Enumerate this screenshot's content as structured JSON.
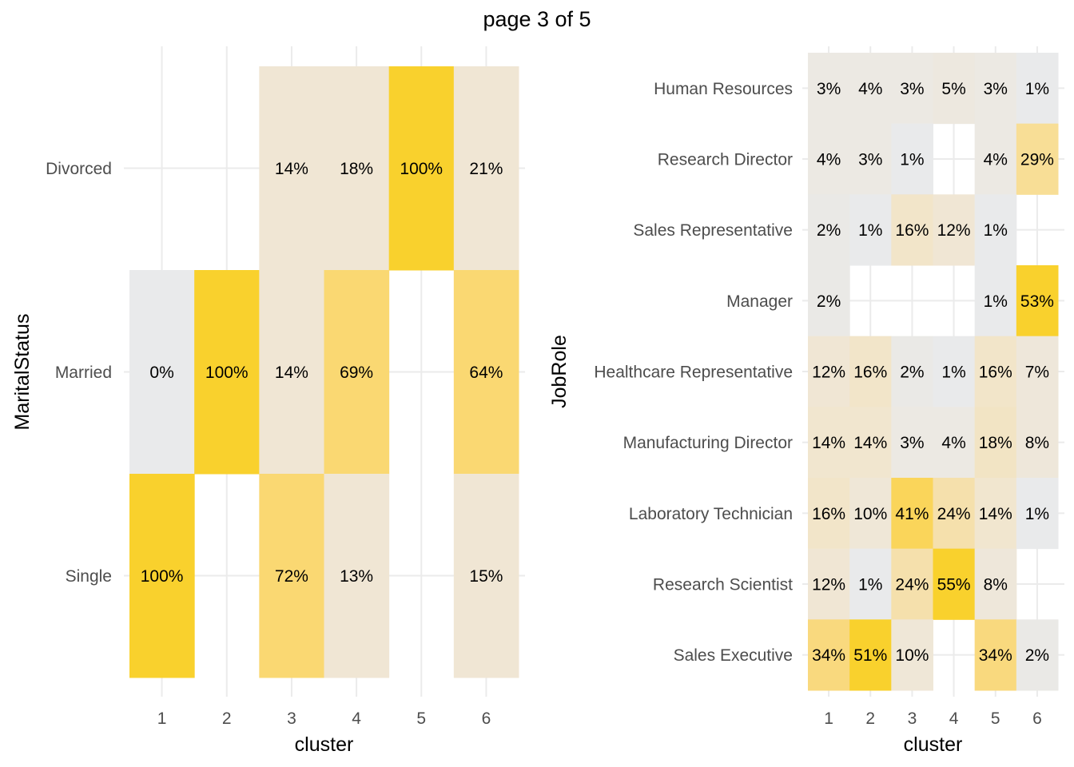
{
  "page_title": "page 3 of 5",
  "chart_data": [
    {
      "type": "heatmap",
      "xlabel": "cluster",
      "ylabel": "MaritalStatus",
      "x": [
        "1",
        "2",
        "3",
        "4",
        "5",
        "6"
      ],
      "y": [
        "Divorced",
        "Married",
        "Single"
      ],
      "grid": true,
      "legend": "none",
      "cells": [
        {
          "x": "3",
          "y": "Divorced",
          "label": "14%",
          "fill": "#f0e6d4"
        },
        {
          "x": "4",
          "y": "Divorced",
          "label": "18%",
          "fill": "#f0e6d4"
        },
        {
          "x": "5",
          "y": "Divorced",
          "label": "100%",
          "fill": "#f9d12d"
        },
        {
          "x": "6",
          "y": "Divorced",
          "label": "21%",
          "fill": "#f0e6d4"
        },
        {
          "x": "1",
          "y": "Married",
          "label": "0%",
          "fill": "#e9eaeb"
        },
        {
          "x": "2",
          "y": "Married",
          "label": "100%",
          "fill": "#f9d12d"
        },
        {
          "x": "3",
          "y": "Married",
          "label": "14%",
          "fill": "#f0e6d4"
        },
        {
          "x": "4",
          "y": "Married",
          "label": "69%",
          "fill": "#fad872"
        },
        {
          "x": "6",
          "y": "Married",
          "label": "64%",
          "fill": "#fad872"
        },
        {
          "x": "1",
          "y": "Single",
          "label": "100%",
          "fill": "#f9d12d"
        },
        {
          "x": "3",
          "y": "Single",
          "label": "72%",
          "fill": "#fad872"
        },
        {
          "x": "4",
          "y": "Single",
          "label": "13%",
          "fill": "#f0e6d4"
        },
        {
          "x": "6",
          "y": "Single",
          "label": "15%",
          "fill": "#f0e6d4"
        }
      ]
    },
    {
      "type": "heatmap",
      "xlabel": "cluster",
      "ylabel": "JobRole",
      "x": [
        "1",
        "2",
        "3",
        "4",
        "5",
        "6"
      ],
      "y": [
        "Human Resources",
        "Research Director",
        "Sales Representative",
        "Manager",
        "Healthcare Representative",
        "Manufacturing Director",
        "Laboratory Technician",
        "Research Scientist",
        "Sales Executive"
      ],
      "grid": true,
      "legend": "none",
      "cells": [
        {
          "x": "1",
          "y": "Human Resources",
          "label": "3%",
          "fill": "#ece9e3"
        },
        {
          "x": "2",
          "y": "Human Resources",
          "label": "4%",
          "fill": "#ece9e3"
        },
        {
          "x": "3",
          "y": "Human Resources",
          "label": "3%",
          "fill": "#ece9e3"
        },
        {
          "x": "4",
          "y": "Human Resources",
          "label": "5%",
          "fill": "#ede8df"
        },
        {
          "x": "5",
          "y": "Human Resources",
          "label": "3%",
          "fill": "#ece9e3"
        },
        {
          "x": "6",
          "y": "Human Resources",
          "label": "1%",
          "fill": "#e9eaeb"
        },
        {
          "x": "1",
          "y": "Research Director",
          "label": "4%",
          "fill": "#ece9e3"
        },
        {
          "x": "2",
          "y": "Research Director",
          "label": "3%",
          "fill": "#ece9e3"
        },
        {
          "x": "3",
          "y": "Research Director",
          "label": "1%",
          "fill": "#e9eaeb"
        },
        {
          "x": "5",
          "y": "Research Director",
          "label": "4%",
          "fill": "#ece9e3"
        },
        {
          "x": "6",
          "y": "Research Director",
          "label": "29%",
          "fill": "#f8de96"
        },
        {
          "x": "1",
          "y": "Sales Representative",
          "label": "2%",
          "fill": "#eae9e6"
        },
        {
          "x": "2",
          "y": "Sales Representative",
          "label": "1%",
          "fill": "#e9eaeb"
        },
        {
          "x": "3",
          "y": "Sales Representative",
          "label": "16%",
          "fill": "#f2e5c9"
        },
        {
          "x": "4",
          "y": "Sales Representative",
          "label": "12%",
          "fill": "#f0e6d4"
        },
        {
          "x": "5",
          "y": "Sales Representative",
          "label": "1%",
          "fill": "#e9eaeb"
        },
        {
          "x": "1",
          "y": "Manager",
          "label": "2%",
          "fill": "#eae9e6"
        },
        {
          "x": "5",
          "y": "Manager",
          "label": "1%",
          "fill": "#e9eaeb"
        },
        {
          "x": "6",
          "y": "Manager",
          "label": "53%",
          "fill": "#f9d12d"
        },
        {
          "x": "1",
          "y": "Healthcare Representative",
          "label": "12%",
          "fill": "#f0e6d4"
        },
        {
          "x": "2",
          "y": "Healthcare Representative",
          "label": "16%",
          "fill": "#f2e5c9"
        },
        {
          "x": "3",
          "y": "Healthcare Representative",
          "label": "2%",
          "fill": "#eae9e6"
        },
        {
          "x": "4",
          "y": "Healthcare Representative",
          "label": "1%",
          "fill": "#e9eaeb"
        },
        {
          "x": "5",
          "y": "Healthcare Representative",
          "label": "16%",
          "fill": "#f2e5c9"
        },
        {
          "x": "6",
          "y": "Healthcare Representative",
          "label": "7%",
          "fill": "#eee7da"
        },
        {
          "x": "1",
          "y": "Manufacturing Director",
          "label": "14%",
          "fill": "#f1e6cf"
        },
        {
          "x": "2",
          "y": "Manufacturing Director",
          "label": "14%",
          "fill": "#f1e6cf"
        },
        {
          "x": "3",
          "y": "Manufacturing Director",
          "label": "3%",
          "fill": "#ece9e3"
        },
        {
          "x": "4",
          "y": "Manufacturing Director",
          "label": "4%",
          "fill": "#ece9e3"
        },
        {
          "x": "5",
          "y": "Manufacturing Director",
          "label": "18%",
          "fill": "#f2e4c4"
        },
        {
          "x": "6",
          "y": "Manufacturing Director",
          "label": "8%",
          "fill": "#eee7da"
        },
        {
          "x": "1",
          "y": "Laboratory Technician",
          "label": "16%",
          "fill": "#f2e5c9"
        },
        {
          "x": "2",
          "y": "Laboratory Technician",
          "label": "10%",
          "fill": "#efe7d7"
        },
        {
          "x": "3",
          "y": "Laboratory Technician",
          "label": "41%",
          "fill": "#fad55a"
        },
        {
          "x": "4",
          "y": "Laboratory Technician",
          "label": "24%",
          "fill": "#f5e0ac"
        },
        {
          "x": "5",
          "y": "Laboratory Technician",
          "label": "14%",
          "fill": "#f1e6cf"
        },
        {
          "x": "6",
          "y": "Laboratory Technician",
          "label": "1%",
          "fill": "#e9eaeb"
        },
        {
          "x": "1",
          "y": "Research Scientist",
          "label": "12%",
          "fill": "#f0e6d4"
        },
        {
          "x": "2",
          "y": "Research Scientist",
          "label": "1%",
          "fill": "#e9eaeb"
        },
        {
          "x": "3",
          "y": "Research Scientist",
          "label": "24%",
          "fill": "#f5e0ac"
        },
        {
          "x": "4",
          "y": "Research Scientist",
          "label": "55%",
          "fill": "#f9d12d"
        },
        {
          "x": "5",
          "y": "Research Scientist",
          "label": "8%",
          "fill": "#eee7da"
        },
        {
          "x": "1",
          "y": "Sales Executive",
          "label": "34%",
          "fill": "#f9d97e"
        },
        {
          "x": "2",
          "y": "Sales Executive",
          "label": "51%",
          "fill": "#f9d12d"
        },
        {
          "x": "3",
          "y": "Sales Executive",
          "label": "10%",
          "fill": "#efe7d7"
        },
        {
          "x": "5",
          "y": "Sales Executive",
          "label": "34%",
          "fill": "#f9d97e"
        },
        {
          "x": "6",
          "y": "Sales Executive",
          "label": "2%",
          "fill": "#eae9e6"
        }
      ]
    }
  ]
}
